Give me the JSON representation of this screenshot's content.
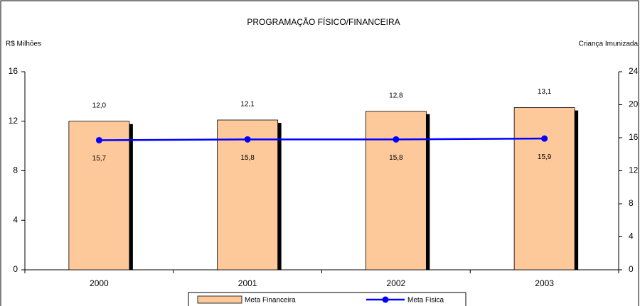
{
  "chart_data": {
    "type": "bar",
    "title": "PROGRAMAÇÃO FÍSICO/FINANCEIRA",
    "y_label": "R$ Milhões",
    "y2_label": "Criança Imunizada",
    "categories": [
      "2000",
      "2001",
      "2002",
      "2003"
    ],
    "series": [
      {
        "name": "Meta Financeira",
        "type": "bar",
        "color": "#fdc99a",
        "values": [
          12.0,
          12.1,
          12.8,
          13.1
        ],
        "value_labels": [
          "12,0",
          "12,1",
          "12,8",
          "13,1"
        ]
      },
      {
        "name": "Meta Fisica",
        "type": "line",
        "axis": "y2",
        "color": "#0000ff",
        "values": [
          15.7,
          15.8,
          15.8,
          15.9
        ],
        "value_labels": [
          "15,7",
          "15,8",
          "15,8",
          "15,9"
        ]
      }
    ],
    "ylim": [
      0,
      16
    ],
    "yticks": [
      0,
      4,
      8,
      12,
      16
    ],
    "y2lim": [
      0,
      24
    ],
    "y2ticks": [
      0,
      4,
      8,
      12,
      16,
      20,
      24
    ],
    "grid": false,
    "legend": "bottom"
  }
}
